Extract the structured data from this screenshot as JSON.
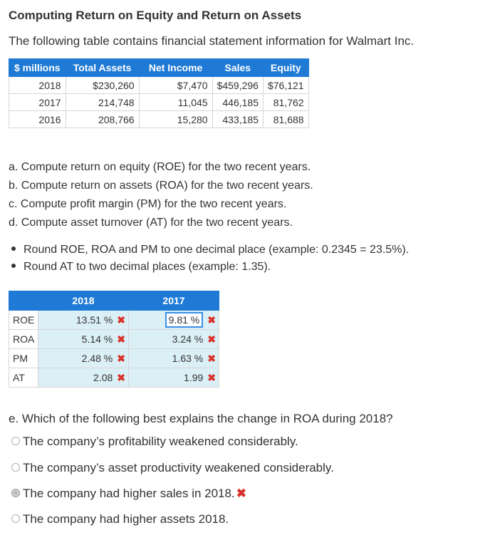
{
  "title": "Computing Return on Equity and Return on Assets",
  "intro": "The following table contains financial statement information for Walmart Inc.",
  "fin_table": {
    "headers": [
      "$ millions",
      "Total Assets",
      "Net Income",
      "Sales",
      "Equity"
    ],
    "rows": [
      [
        "2018",
        "$230,260",
        "$7,470",
        "$459,296",
        "$76,121"
      ],
      [
        "2017",
        "214,748",
        "11,045",
        "446,185",
        "81,762"
      ],
      [
        "2016",
        "208,766",
        "15,280",
        "433,185",
        "81,688"
      ]
    ]
  },
  "questions": [
    "a. Compute return on equity (ROE) for the two recent years.",
    "b. Compute return on assets (ROA) for the two recent years.",
    "c. Compute profit margin (PM) for the two recent years.",
    "d. Compute asset turnover (AT) for the two recent years."
  ],
  "bullets": [
    "Round ROE, ROA and PM to one decimal place (example: 0.2345 = 23.5%).",
    "Round AT to two decimal places (example: 1.35)."
  ],
  "answer_table": {
    "headers": [
      "",
      "2018",
      "2017"
    ],
    "rows": [
      {
        "label": "ROE",
        "v2018": "13.51 %",
        "v2017": "9.81 %"
      },
      {
        "label": "ROA",
        "v2018": "5.14 %",
        "v2017": "3.24 %"
      },
      {
        "label": "PM",
        "v2018": "2.48 %",
        "v2017": "1.63 %"
      },
      {
        "label": "AT",
        "v2018": "2.08",
        "v2017": "1.99"
      }
    ],
    "incorrect_mark": "✖"
  },
  "question_e": "e. Which of the following best explains the change in ROA during 2018?",
  "options": [
    {
      "label": "The company’s profitability weakened considerably.",
      "selected": false
    },
    {
      "label": "The company’s asset productivity weakened considerably.",
      "selected": false
    },
    {
      "label": "The company had higher sales in 2018.",
      "selected": true
    },
    {
      "label": "The company had higher assets 2018.",
      "selected": false
    }
  ],
  "colors": {
    "header_blue": "#1f7ad6",
    "cell_fill": "#dbeff6",
    "error_red": "#d9312b"
  }
}
